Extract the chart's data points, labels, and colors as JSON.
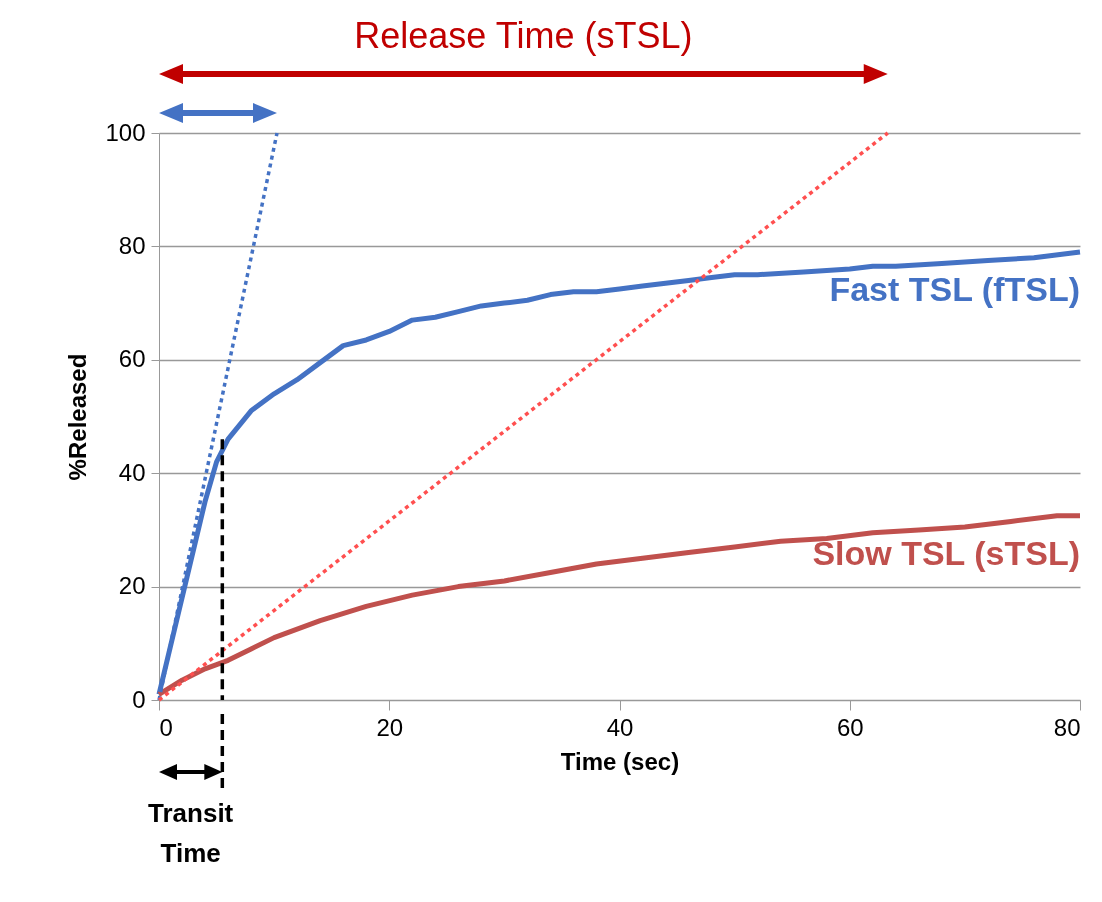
{
  "chart_data": {
    "type": "line",
    "xlabel": "Time (sec)",
    "ylabel": "%Released",
    "xlim": [
      0,
      80
    ],
    "ylim": [
      0,
      100
    ],
    "xticks": [
      0,
      20,
      40,
      60,
      80
    ],
    "yticks": [
      0,
      20,
      40,
      60,
      80,
      100
    ],
    "grid": "y",
    "legend": false,
    "annotations": [
      "Release Time (sTSL)",
      "Transit Time"
    ],
    "series": [
      {
        "name": "Fast TSL (fTSL)",
        "color": "#4472c4",
        "line_style": "solid",
        "x": [
          0,
          2,
          4,
          5,
          6,
          8,
          10,
          12,
          14,
          16,
          18,
          20,
          22,
          24,
          26,
          28,
          30,
          32,
          34,
          36,
          38,
          40,
          42,
          44,
          46,
          48,
          50,
          52,
          56,
          60,
          62,
          64,
          68,
          72,
          76,
          80
        ],
        "values": [
          1,
          18,
          35,
          42,
          46,
          51,
          54,
          56.5,
          59.5,
          62.5,
          63.5,
          65,
          67,
          67.5,
          68.5,
          69.5,
          70,
          70.5,
          71.5,
          72,
          72,
          72.5,
          73,
          73.5,
          74,
          74.5,
          75,
          75,
          75.5,
          76,
          76.5,
          76.5,
          77,
          77.5,
          78,
          79
        ]
      },
      {
        "name": "Slow TSL (sTSL)",
        "color": "#c0504d",
        "line_style": "solid",
        "x": [
          0,
          2,
          4,
          6,
          8,
          10,
          14,
          18,
          22,
          26,
          30,
          34,
          38,
          42,
          46,
          50,
          54,
          58,
          62,
          66,
          70,
          74,
          78,
          80
        ],
        "values": [
          1,
          3.5,
          5.5,
          7,
          9,
          11,
          14,
          16.5,
          18.5,
          20,
          21,
          22.5,
          24,
          25,
          26,
          27,
          28,
          28.5,
          29.5,
          30,
          30.5,
          31.5,
          32.5,
          32.5
        ]
      },
      {
        "color": "#4472c4",
        "line_style": "dotted",
        "x": [
          0,
          10.25
        ],
        "values": [
          0,
          100
        ]
      },
      {
        "color": "#ff4f4f",
        "line_style": "dotted",
        "x": [
          0,
          63.3
        ],
        "values": [
          0,
          100
        ]
      },
      {
        "color": "#000000",
        "line_style": "dashed",
        "x": [
          5.5,
          5.5
        ],
        "values": [
          46,
          0
        ]
      }
    ]
  }
}
